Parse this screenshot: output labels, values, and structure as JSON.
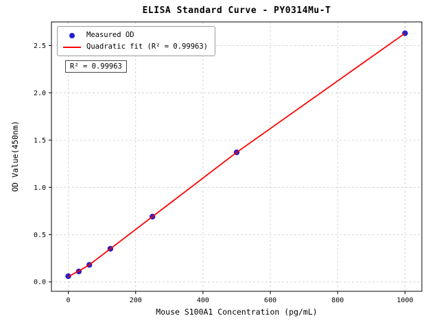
{
  "chart_data": {
    "type": "scatter",
    "title": "ELISA Standard Curve - PY0314Mu-T",
    "xlabel": "Mouse S100A1 Concentration (pg/mL)",
    "ylabel": "OD Value(450nm)",
    "xlim": [
      -50,
      1050
    ],
    "ylim": [
      -0.1,
      2.75
    ],
    "xticks": [
      0,
      200,
      400,
      600,
      800,
      1000
    ],
    "yticks": [
      0.0,
      0.5,
      1.0,
      1.5,
      2.0,
      2.5
    ],
    "grid": true,
    "grid_style": "dashed",
    "colors": {
      "points": "#2222cc",
      "fit_line": "#ff0000",
      "gridline": "#cccccc",
      "axis": "#000000"
    },
    "legend": {
      "position": "upper-left",
      "items": [
        {
          "label": "Measured OD",
          "marker": "circle",
          "color": "#2222cc"
        },
        {
          "label": "Quadratic fit (R² = 0.99963)",
          "marker": "line",
          "color": "#ff0000"
        }
      ]
    },
    "annotation": "R² = 0.99963",
    "series": [
      {
        "name": "Measured OD",
        "type": "scatter",
        "color": "#2222cc",
        "x": [
          0,
          31.25,
          62.5,
          125,
          250,
          500,
          1000
        ],
        "y": [
          0.06,
          0.11,
          0.18,
          0.35,
          0.69,
          1.37,
          2.63
        ]
      },
      {
        "name": "Quadratic fit",
        "type": "line",
        "color": "#ff0000",
        "x": [
          0,
          31.25,
          62.5,
          125,
          250,
          500,
          1000
        ],
        "y": [
          0.055,
          0.115,
          0.18,
          0.35,
          0.69,
          1.37,
          2.63
        ]
      }
    ]
  }
}
